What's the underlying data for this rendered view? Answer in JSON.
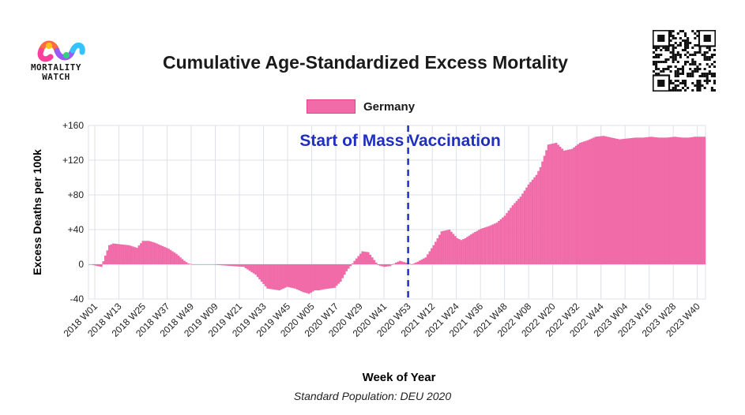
{
  "header": {
    "logo_line1": "MORTALITY",
    "logo_line2": "WATCH",
    "title": "Cumulative Age-Standardized Excess Mortality"
  },
  "icons": [
    "mortality-watch-logo-icon",
    "qr-code-icon"
  ],
  "colors": {
    "series": "#f06ba8",
    "series_stroke": "#e2468f",
    "annotation": "#1f2fbf",
    "grid": "#dde0e8"
  },
  "footer": {
    "standard_population": "Standard Population: DEU 2020"
  },
  "chart_data": {
    "type": "bar",
    "title": "Cumulative Age-Standardized Excess Mortality",
    "xlabel": "Week of Year",
    "ylabel": "Excess Deaths per 100k",
    "ylim": [
      -40,
      160
    ],
    "yticks": [
      -40,
      0,
      40,
      80,
      120,
      160
    ],
    "ytick_labels": [
      "-40",
      "0",
      "+40",
      "+80",
      "+120",
      "+160"
    ],
    "xticks": [
      "2018 W01",
      "2018 W13",
      "2018 W25",
      "2018 W37",
      "2018 W49",
      "2019 W09",
      "2019 W21",
      "2019 W33",
      "2019 W45",
      "2020 W05",
      "2020 W17",
      "2020 W29",
      "2020 W41",
      "2020 W53",
      "2021 W12",
      "2021 W24",
      "2021 W36",
      "2021 W48",
      "2022 W08",
      "2022 W20",
      "2022 W32",
      "2022 W44",
      "2023 W04",
      "2023 W16",
      "2023 W28",
      "2023 W40"
    ],
    "grid": true,
    "legend": "top-center",
    "series": [
      {
        "name": "Germany",
        "week_index": [
          0,
          6,
          8,
          10,
          12,
          16,
          20,
          24,
          27,
          30,
          33,
          36,
          40,
          44,
          46,
          48,
          50,
          52,
          56,
          60,
          66,
          72,
          78,
          84,
          90,
          96,
          100,
          104,
          108,
          111,
          114,
          116,
          118,
          121,
          124,
          127,
          130,
          134,
          138,
          141,
          144,
          146,
          149,
          152,
          155,
          157,
          160,
          163,
          166,
          170,
          174,
          178,
          182,
          186,
          188,
          190,
          194,
          198,
          202,
          206,
          210,
          214,
          218,
          222,
          226,
          228,
          232,
          236,
          240,
          244,
          248,
          252,
          256,
          260,
          264,
          268,
          272,
          276,
          280,
          284,
          288,
          292,
          296,
          300,
          303,
          306,
          310
        ],
        "values": [
          0,
          -3,
          10,
          22,
          24,
          23,
          22,
          19,
          27,
          27,
          25,
          22,
          18,
          12,
          8,
          4,
          1,
          0,
          0,
          0,
          -1,
          -2,
          -3,
          -12,
          -28,
          -30,
          -26,
          -28,
          -32,
          -34,
          -30,
          -30,
          -29,
          -28,
          -27,
          -20,
          -8,
          4,
          15,
          14,
          5,
          -1,
          -3,
          -2,
          2,
          4,
          2,
          0,
          3,
          8,
          22,
          38,
          40,
          30,
          28,
          30,
          36,
          41,
          44,
          48,
          56,
          68,
          78,
          92,
          103,
          112,
          138,
          140,
          131,
          133,
          140,
          143,
          147,
          148,
          146,
          144,
          145,
          146,
          146,
          147,
          146,
          146,
          147,
          146,
          146,
          147,
          147
        ],
        "color": "#f06ba8"
      }
    ],
    "annotations": [
      {
        "text": "Start of Mass Vaccination",
        "x": "2020 W53",
        "style": "dashed-vertical-line"
      }
    ]
  }
}
